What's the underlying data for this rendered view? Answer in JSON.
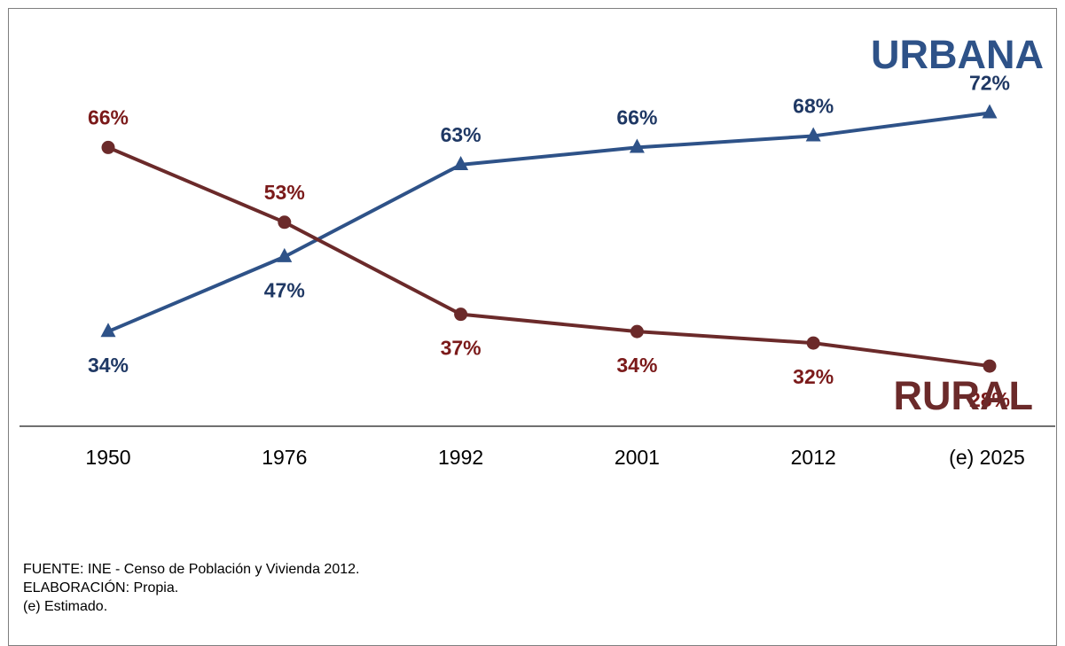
{
  "chart_data": {
    "type": "line",
    "categories": [
      "1950",
      "1976",
      "1992",
      "2001",
      "2012",
      "(e) 2025"
    ],
    "series": [
      {
        "name": "URBANA",
        "values": [
          34,
          47,
          63,
          66,
          68,
          72
        ],
        "labels": [
          "34%",
          "47%",
          "63%",
          "66%",
          "68%",
          "72%"
        ],
        "color": "#2e5288",
        "label_color": "#1f3864",
        "marker": "triangle"
      },
      {
        "name": "RURAL",
        "values": [
          66,
          53,
          37,
          34,
          32,
          28
        ],
        "labels": [
          "66%",
          "53%",
          "37%",
          "34%",
          "32%",
          "28%"
        ],
        "color": "#6b2a2a",
        "label_color": "#7b1a1a",
        "marker": "circle"
      }
    ],
    "ylim": [
      20,
      75
    ],
    "grid": false,
    "legend": "inline-right"
  },
  "notes": {
    "source": "FUENTE: INE - Censo de Población y Vivienda 2012.",
    "elaboration": "ELABORACIÓN: Propia.",
    "estimate": "(e) Estimado."
  }
}
